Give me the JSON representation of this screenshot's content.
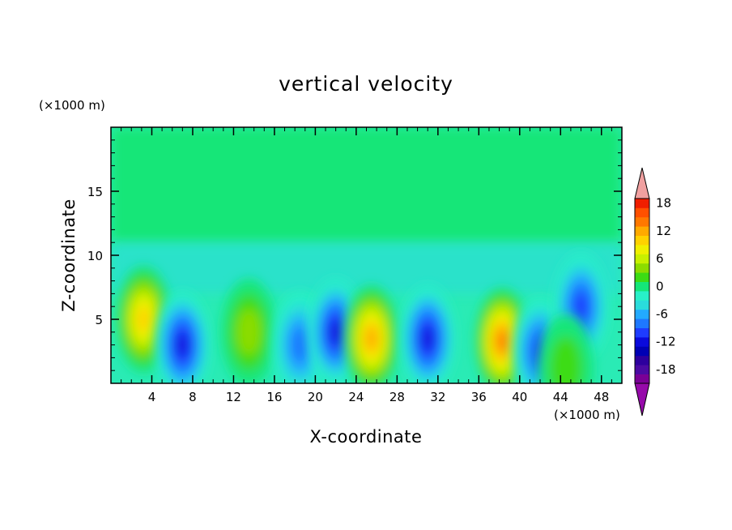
{
  "chart_data": {
    "type": "heatmap",
    "title": "vertical velocity",
    "xlabel": "X-coordinate",
    "ylabel": "Z-coordinate",
    "x_unit": "(×1000 m)",
    "y_unit": "(×1000 m)",
    "xlim": [
      0,
      50
    ],
    "ylim": [
      0,
      20
    ],
    "x_ticks": [
      4,
      8,
      12,
      16,
      20,
      24,
      28,
      32,
      36,
      40,
      44,
      48
    ],
    "x_tick_labels": [
      "4",
      "8",
      "12",
      "16",
      "20",
      "24",
      "28",
      "32",
      "36",
      "40",
      "44",
      "48"
    ],
    "y_ticks": [
      5,
      10,
      15
    ],
    "y_tick_labels": [
      "5",
      "10",
      "15"
    ],
    "colorbar": {
      "levels": [
        -20,
        -18,
        -16,
        -14,
        -12,
        -10,
        -8,
        -6,
        -4,
        -2,
        0,
        2,
        4,
        6,
        8,
        10,
        12,
        14,
        16,
        18,
        20
      ],
      "tick_values": [
        -18,
        -12,
        -6,
        0,
        6,
        12,
        18
      ],
      "tick_labels": [
        "-18",
        "-12",
        "-6",
        "0",
        "6",
        "12",
        "18"
      ],
      "colors": [
        "#7a0096",
        "#4b0aa3",
        "#2d009e",
        "#0000b4",
        "#0a0adc",
        "#1e3cff",
        "#1e78ff",
        "#23aaff",
        "#2adcdc",
        "#28f0c8",
        "#14e678",
        "#3cdc14",
        "#8cdc00",
        "#c8f000",
        "#f0f000",
        "#ffd200",
        "#ffaa00",
        "#ff7800",
        "#ff5000",
        "#f01e00",
        "#d20000"
      ],
      "extend_low_color": "#960aaa",
      "extend_high_color": "#f0a0a0"
    },
    "features": [
      {
        "x": 3.2,
        "z": 5.0,
        "value": 12,
        "sign": "updraft"
      },
      {
        "x": 7.0,
        "z": 3.0,
        "value": -12,
        "sign": "downdraft"
      },
      {
        "x": 13.5,
        "z": 4.0,
        "value": 6,
        "sign": "updraft"
      },
      {
        "x": 18.5,
        "z": 3.0,
        "value": -8,
        "sign": "downdraft"
      },
      {
        "x": 22.0,
        "z": 4.0,
        "value": -12,
        "sign": "downdraft"
      },
      {
        "x": 25.5,
        "z": 3.5,
        "value": 14,
        "sign": "updraft"
      },
      {
        "x": 31.0,
        "z": 3.5,
        "value": -12,
        "sign": "downdraft"
      },
      {
        "x": 38.3,
        "z": 3.3,
        "value": 16,
        "sign": "updraft"
      },
      {
        "x": 42.0,
        "z": 2.5,
        "value": -10,
        "sign": "downdraft"
      },
      {
        "x": 46.0,
        "z": 6.0,
        "value": -10,
        "sign": "downdraft"
      },
      {
        "x": 44.5,
        "z": 1.2,
        "value": 3,
        "sign": "updraft"
      }
    ]
  }
}
